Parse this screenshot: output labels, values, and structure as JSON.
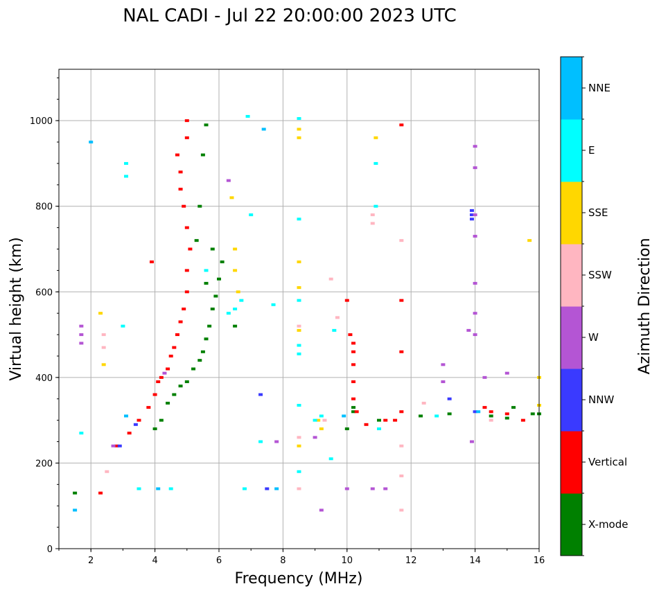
{
  "chart_data": {
    "type": "scatter",
    "title": "NAL CADI - Jul 22 20:00:00 2023 UTC",
    "xlabel": "Frequency (MHz)",
    "ylabel": "Virtual height (km)",
    "xlim": [
      1,
      16
    ],
    "ylim": [
      0,
      1120
    ],
    "xticks": [
      "2",
      "4",
      "6",
      "8",
      "10",
      "12",
      "14",
      "16"
    ],
    "yticks": [
      "0",
      "200",
      "400",
      "600",
      "800",
      "1000"
    ],
    "grid": true,
    "colorbar": {
      "label": "Azimuth Direction",
      "categories": [
        "X-mode",
        "Vertical",
        "NNW",
        "W",
        "SSW",
        "SSE",
        "E",
        "NNE"
      ],
      "colors": [
        "#008000",
        "#ff0000",
        "#3a3aff",
        "#b455d4",
        "#ffb6c1",
        "#ffd700",
        "#00ffff",
        "#00bfff"
      ]
    },
    "series": [
      {
        "name": "X-mode",
        "points": [
          [
            1.5,
            130
          ],
          [
            5.0,
            390
          ],
          [
            5.2,
            420
          ],
          [
            5.4,
            440
          ],
          [
            5.5,
            460
          ],
          [
            5.6,
            490
          ],
          [
            5.7,
            520
          ],
          [
            5.8,
            560
          ],
          [
            5.9,
            590
          ],
          [
            6.0,
            630
          ],
          [
            6.1,
            670
          ],
          [
            5.6,
            620
          ],
          [
            5.8,
            700
          ],
          [
            5.3,
            720
          ],
          [
            5.4,
            800
          ],
          [
            5.5,
            920
          ],
          [
            5.6,
            990
          ],
          [
            6.5,
            520
          ],
          [
            10.0,
            280
          ],
          [
            10.2,
            320
          ],
          [
            10.2,
            330
          ],
          [
            11.0,
            300
          ],
          [
            12.3,
            310
          ],
          [
            13.2,
            315
          ],
          [
            14.5,
            310
          ],
          [
            15.0,
            305
          ],
          [
            15.2,
            330
          ],
          [
            15.8,
            315
          ],
          [
            16.0,
            315
          ],
          [
            4.0,
            280
          ],
          [
            4.2,
            300
          ],
          [
            4.4,
            340
          ],
          [
            4.6,
            360
          ],
          [
            4.8,
            380
          ]
        ]
      },
      {
        "name": "Vertical",
        "points": [
          [
            2.3,
            130
          ],
          [
            2.8,
            240
          ],
          [
            3.2,
            270
          ],
          [
            3.5,
            300
          ],
          [
            3.8,
            330
          ],
          [
            4.0,
            360
          ],
          [
            4.1,
            390
          ],
          [
            4.2,
            400
          ],
          [
            4.4,
            420
          ],
          [
            4.5,
            450
          ],
          [
            4.6,
            470
          ],
          [
            4.7,
            500
          ],
          [
            4.8,
            530
          ],
          [
            4.9,
            560
          ],
          [
            5.0,
            600
          ],
          [
            5.0,
            650
          ],
          [
            5.1,
            700
          ],
          [
            5.0,
            750
          ],
          [
            4.9,
            800
          ],
          [
            4.8,
            840
          ],
          [
            4.8,
            880
          ],
          [
            4.7,
            920
          ],
          [
            5.0,
            960
          ],
          [
            5.0,
            1000
          ],
          [
            3.9,
            670
          ],
          [
            10.2,
            430
          ],
          [
            10.2,
            460
          ],
          [
            10.2,
            480
          ],
          [
            10.2,
            390
          ],
          [
            10.2,
            350
          ],
          [
            10.1,
            500
          ],
          [
            10.0,
            580
          ],
          [
            10.3,
            320
          ],
          [
            10.6,
            290
          ],
          [
            11.2,
            300
          ],
          [
            11.5,
            300
          ],
          [
            11.7,
            320
          ],
          [
            14.3,
            330
          ],
          [
            14.5,
            320
          ],
          [
            15.0,
            315
          ],
          [
            15.5,
            300
          ],
          [
            11.7,
            990
          ],
          [
            11.7,
            580
          ],
          [
            11.7,
            460
          ]
        ]
      },
      {
        "name": "NNW",
        "points": [
          [
            2.9,
            240
          ],
          [
            3.4,
            290
          ],
          [
            13.2,
            350
          ],
          [
            13.9,
            780
          ],
          [
            13.9,
            790
          ],
          [
            13.9,
            770
          ],
          [
            14.0,
            320
          ],
          [
            7.3,
            360
          ],
          [
            7.5,
            140
          ]
        ]
      },
      {
        "name": "W",
        "points": [
          [
            1.7,
            480
          ],
          [
            1.7,
            500
          ],
          [
            1.7,
            520
          ],
          [
            2.7,
            240
          ],
          [
            4.3,
            410
          ],
          [
            9.0,
            260
          ],
          [
            9.2,
            90
          ],
          [
            10.0,
            140
          ],
          [
            10.8,
            140
          ],
          [
            11.2,
            140
          ],
          [
            14.0,
            940
          ],
          [
            14.0,
            890
          ],
          [
            14.0,
            780
          ],
          [
            14.0,
            730
          ],
          [
            14.0,
            620
          ],
          [
            14.0,
            550
          ],
          [
            14.0,
            500
          ],
          [
            14.3,
            400
          ],
          [
            15.0,
            410
          ],
          [
            13.8,
            510
          ],
          [
            13.0,
            430
          ],
          [
            13.0,
            390
          ],
          [
            13.9,
            250
          ],
          [
            6.3,
            860
          ],
          [
            7.8,
            250
          ]
        ]
      },
      {
        "name": "SSW",
        "points": [
          [
            2.4,
            470
          ],
          [
            2.4,
            500
          ],
          [
            2.5,
            180
          ],
          [
            8.5,
            140
          ],
          [
            8.5,
            260
          ],
          [
            8.5,
            520
          ],
          [
            9.3,
            300
          ],
          [
            9.5,
            630
          ],
          [
            9.7,
            540
          ],
          [
            10.8,
            780
          ],
          [
            10.8,
            760
          ],
          [
            11.7,
            720
          ],
          [
            11.7,
            240
          ],
          [
            11.7,
            170
          ],
          [
            11.7,
            90
          ],
          [
            12.4,
            340
          ],
          [
            14.5,
            300
          ]
        ]
      },
      {
        "name": "SSE",
        "points": [
          [
            2.3,
            550
          ],
          [
            2.4,
            430
          ],
          [
            6.4,
            820
          ],
          [
            6.5,
            700
          ],
          [
            6.5,
            650
          ],
          [
            6.6,
            600
          ],
          [
            8.5,
            980
          ],
          [
            8.5,
            960
          ],
          [
            8.5,
            670
          ],
          [
            8.5,
            610
          ],
          [
            8.5,
            510
          ],
          [
            8.5,
            240
          ],
          [
            9.1,
            300
          ],
          [
            9.2,
            280
          ],
          [
            10.9,
            960
          ],
          [
            15.7,
            720
          ],
          [
            16.0,
            400
          ],
          [
            16.0,
            335
          ]
        ]
      },
      {
        "name": "E",
        "points": [
          [
            1.7,
            270
          ],
          [
            3.1,
            900
          ],
          [
            3.1,
            870
          ],
          [
            3.0,
            520
          ],
          [
            3.5,
            140
          ],
          [
            4.5,
            140
          ],
          [
            5.6,
            650
          ],
          [
            6.3,
            550
          ],
          [
            6.5,
            560
          ],
          [
            6.7,
            580
          ],
          [
            6.9,
            1010
          ],
          [
            7.0,
            780
          ],
          [
            7.7,
            570
          ],
          [
            8.5,
            1005
          ],
          [
            8.5,
            770
          ],
          [
            8.5,
            580
          ],
          [
            8.5,
            475
          ],
          [
            8.5,
            455
          ],
          [
            8.5,
            335
          ],
          [
            8.5,
            180
          ],
          [
            9.0,
            300
          ],
          [
            9.2,
            310
          ],
          [
            9.5,
            210
          ],
          [
            9.6,
            510
          ],
          [
            10.9,
            900
          ],
          [
            10.9,
            800
          ],
          [
            11.0,
            280
          ],
          [
            12.8,
            310
          ],
          [
            6.8,
            140
          ],
          [
            7.3,
            250
          ]
        ]
      },
      {
        "name": "NNE",
        "points": [
          [
            1.5,
            90
          ],
          [
            2.0,
            950
          ],
          [
            3.1,
            310
          ],
          [
            4.1,
            140
          ],
          [
            7.4,
            980
          ],
          [
            7.8,
            140
          ],
          [
            14.1,
            320
          ],
          [
            9.9,
            310
          ]
        ]
      }
    ]
  }
}
